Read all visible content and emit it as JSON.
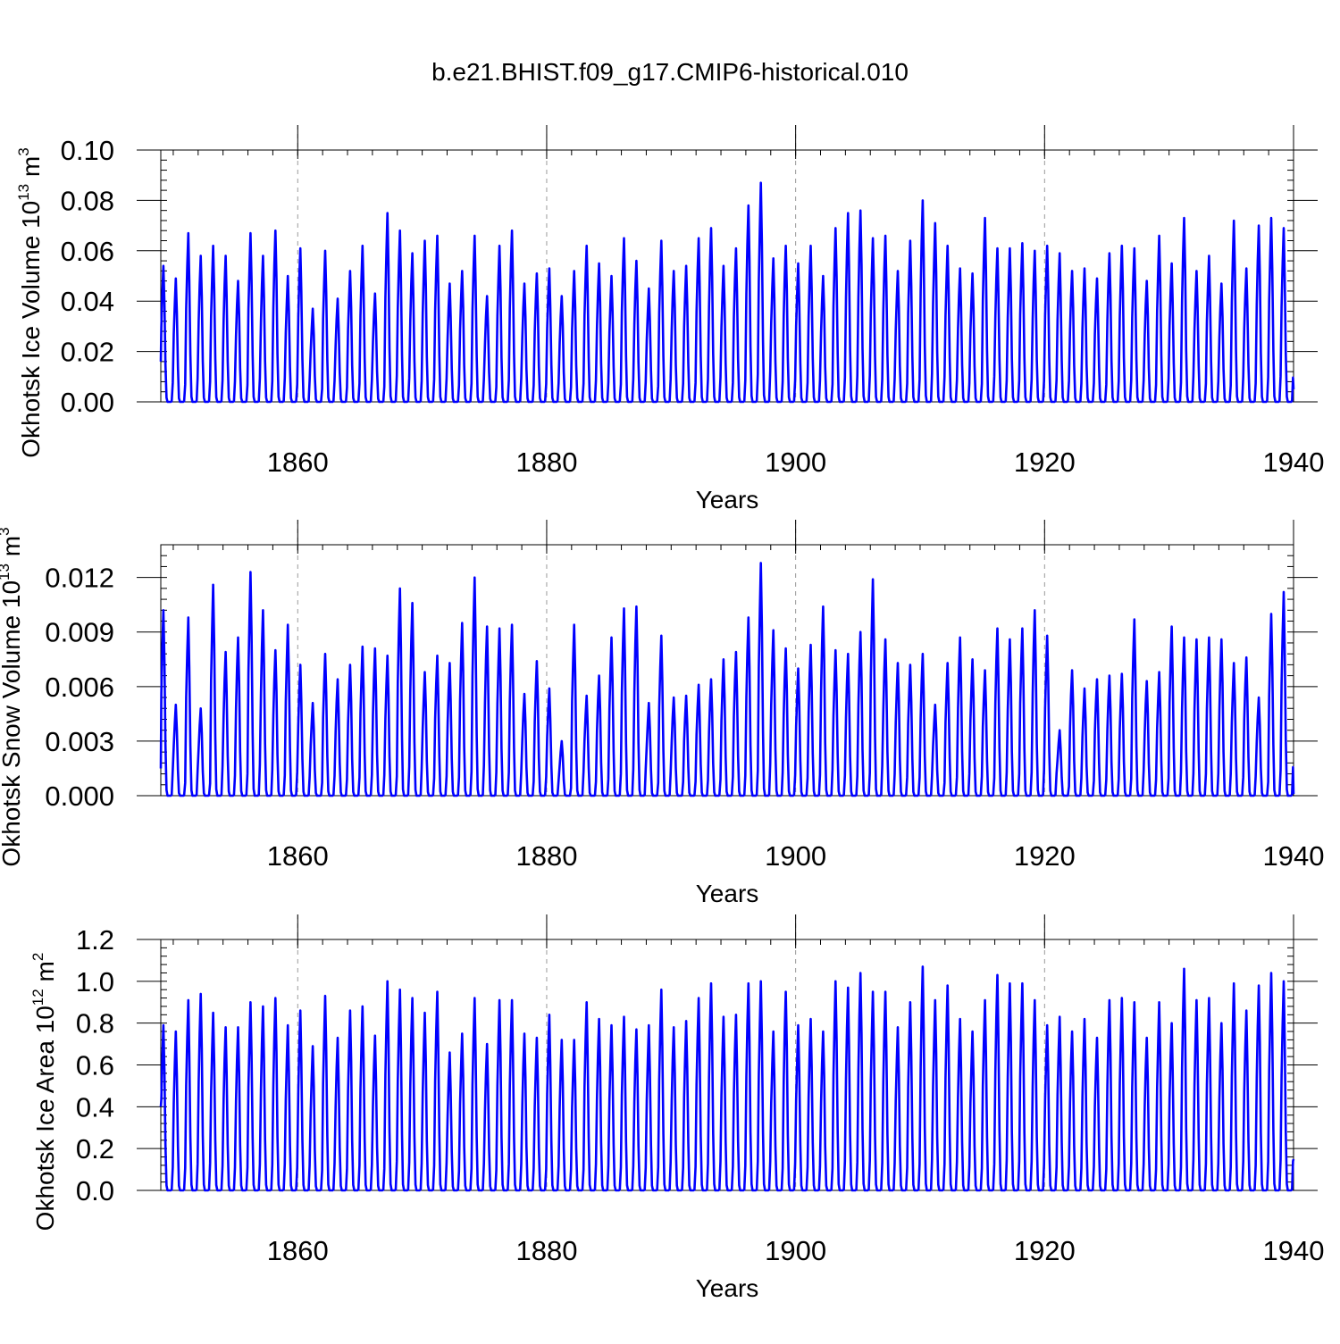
{
  "title": "b.e21.BHIST.f09_g17.CMIP6-historical.010",
  "colors": {
    "series": "#0000ff",
    "grid": "#999999",
    "axis": "#000000"
  },
  "chart_data": [
    {
      "type": "line",
      "ylabel": "Okhotsk Ice Volume 10",
      "ylabel_exp": "13",
      "ylabel_unit": " m",
      "ylabel_unit_exp": "3",
      "xlabel": "Years",
      "xlim": [
        1849,
        1940
      ],
      "ylim": [
        0,
        0.1
      ],
      "yticks": [
        0,
        0.02,
        0.04,
        0.06,
        0.08,
        0.1
      ],
      "ytick_labels": [
        "0.00",
        "0.02",
        "0.04",
        "0.06",
        "0.08",
        "0.10"
      ],
      "xticks": [
        1860,
        1880,
        1900,
        1920,
        1940
      ],
      "xtick_labels": [
        "1860",
        "1880",
        "1900",
        "1920",
        "1940"
      ],
      "grid_x": [
        1860,
        1880,
        1900,
        1920
      ],
      "series_name": "Okhotsk Ice Volume",
      "start_value": 0.016,
      "end_value": 0.005,
      "annual_peaks": [
        0.054,
        0.049,
        0.067,
        0.058,
        0.062,
        0.058,
        0.048,
        0.067,
        0.058,
        0.068,
        0.05,
        0.061,
        0.037,
        0.06,
        0.041,
        0.052,
        0.062,
        0.043,
        0.075,
        0.068,
        0.059,
        0.064,
        0.066,
        0.047,
        0.052,
        0.066,
        0.042,
        0.062,
        0.068,
        0.047,
        0.051,
        0.053,
        0.042,
        0.052,
        0.062,
        0.055,
        0.05,
        0.065,
        0.056,
        0.045,
        0.064,
        0.052,
        0.054,
        0.065,
        0.069,
        0.054,
        0.061,
        0.078,
        0.087,
        0.057,
        0.062,
        0.055,
        0.062,
        0.05,
        0.069,
        0.075,
        0.076,
        0.065,
        0.066,
        0.052,
        0.064,
        0.08,
        0.071,
        0.062,
        0.053,
        0.051,
        0.073,
        0.061,
        0.061,
        0.063,
        0.06,
        0.062,
        0.059,
        0.052,
        0.053,
        0.049,
        0.059,
        0.062,
        0.061,
        0.048,
        0.066,
        0.055,
        0.073,
        0.052,
        0.058,
        0.047,
        0.072,
        0.053,
        0.07,
        0.073,
        0.069
      ]
    },
    {
      "type": "line",
      "ylabel": "Okhotsk Snow Volume 10",
      "ylabel_exp": "13",
      "ylabel_unit": " m",
      "ylabel_unit_exp": "3",
      "xlabel": "Years",
      "xlim": [
        1849,
        1940
      ],
      "ylim": [
        0,
        0.0138
      ],
      "yticks": [
        0,
        0.003,
        0.006,
        0.009,
        0.012
      ],
      "ytick_labels": [
        "0.000",
        "0.003",
        "0.006",
        "0.009",
        "0.012"
      ],
      "xticks": [
        1860,
        1880,
        1900,
        1920,
        1940
      ],
      "xtick_labels": [
        "1860",
        "1880",
        "1900",
        "1920",
        "1940"
      ],
      "grid_x": [
        1860,
        1880,
        1900,
        1920
      ],
      "series_name": "Okhotsk Snow Volume",
      "start_value": 0.0015,
      "end_value": 0.0001,
      "annual_peaks": [
        0.0102,
        0.005,
        0.0098,
        0.0048,
        0.0116,
        0.0079,
        0.0087,
        0.0123,
        0.0102,
        0.008,
        0.0094,
        0.0072,
        0.0051,
        0.0078,
        0.0064,
        0.0072,
        0.0082,
        0.0081,
        0.0077,
        0.0114,
        0.0106,
        0.0068,
        0.0077,
        0.0073,
        0.0095,
        0.012,
        0.0093,
        0.0092,
        0.0094,
        0.0056,
        0.0074,
        0.0059,
        0.003,
        0.0094,
        0.0055,
        0.0066,
        0.0087,
        0.0103,
        0.0104,
        0.0051,
        0.0088,
        0.0054,
        0.0055,
        0.0061,
        0.0064,
        0.0075,
        0.0079,
        0.0098,
        0.0128,
        0.0091,
        0.0081,
        0.007,
        0.0083,
        0.0104,
        0.008,
        0.0078,
        0.009,
        0.0119,
        0.0086,
        0.0073,
        0.0072,
        0.0078,
        0.005,
        0.0073,
        0.0087,
        0.0075,
        0.0069,
        0.0092,
        0.0086,
        0.0092,
        0.0102,
        0.0088,
        0.0036,
        0.0069,
        0.0059,
        0.0064,
        0.0066,
        0.0067,
        0.0097,
        0.0063,
        0.0068,
        0.0093,
        0.0087,
        0.0086,
        0.0087,
        0.0086,
        0.0073,
        0.0076,
        0.0054,
        0.01,
        0.0112
      ]
    },
    {
      "type": "line",
      "ylabel": "Okhotsk Ice Area 10",
      "ylabel_exp": "12",
      "ylabel_unit": " m",
      "ylabel_unit_exp": "2",
      "xlabel": "Years",
      "xlim": [
        1849,
        1940
      ],
      "ylim": [
        0,
        1.2
      ],
      "yticks": [
        0,
        0.2,
        0.4,
        0.6,
        0.8,
        1.0,
        1.2
      ],
      "ytick_labels": [
        "0.0",
        "0.2",
        "0.4",
        "0.6",
        "0.8",
        "1.0",
        "1.2"
      ],
      "xticks": [
        1860,
        1880,
        1900,
        1920,
        1940
      ],
      "xtick_labels": [
        "1860",
        "1880",
        "1900",
        "1920",
        "1940"
      ],
      "grid_x": [
        1860,
        1880,
        1900,
        1920
      ],
      "series_name": "Okhotsk Ice Area",
      "start_value": 0.4,
      "end_value": 0.15,
      "annual_peaks": [
        0.79,
        0.76,
        0.91,
        0.94,
        0.85,
        0.78,
        0.78,
        0.9,
        0.88,
        0.92,
        0.79,
        0.86,
        0.69,
        0.93,
        0.73,
        0.86,
        0.88,
        0.74,
        1.0,
        0.96,
        0.92,
        0.85,
        0.95,
        0.66,
        0.75,
        0.92,
        0.7,
        0.91,
        0.91,
        0.75,
        0.73,
        0.84,
        0.72,
        0.72,
        0.9,
        0.82,
        0.79,
        0.83,
        0.77,
        0.79,
        0.96,
        0.78,
        0.81,
        0.92,
        0.99,
        0.83,
        0.84,
        0.99,
        1.0,
        0.76,
        0.95,
        0.79,
        0.82,
        0.76,
        1.0,
        0.97,
        1.04,
        0.95,
        0.95,
        0.78,
        0.9,
        1.07,
        0.91,
        0.98,
        0.82,
        0.76,
        0.91,
        1.03,
        0.99,
        0.99,
        0.91,
        0.79,
        0.83,
        0.76,
        0.82,
        0.73,
        0.91,
        0.92,
        0.9,
        0.73,
        0.9,
        0.8,
        1.06,
        0.91,
        0.92,
        0.8,
        0.99,
        0.86,
        0.98,
        1.04,
        1.0
      ]
    }
  ]
}
